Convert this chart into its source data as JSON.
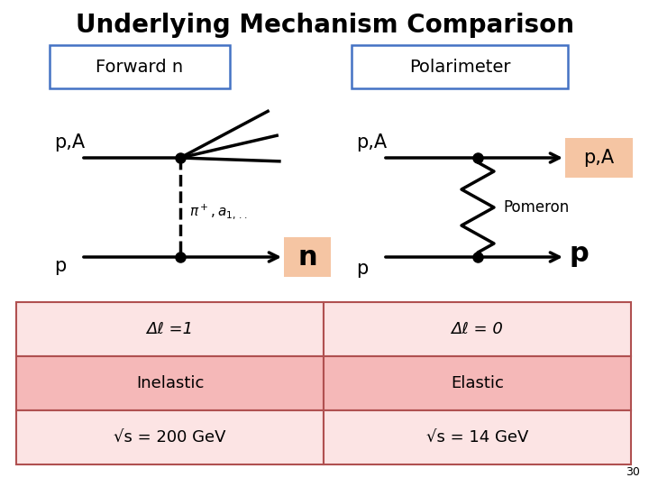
{
  "title": "Underlying Mechanism Comparison",
  "title_fontsize": 20,
  "background_color": "#ffffff",
  "left_label": "Forward n",
  "right_label": "Polarimeter",
  "label_box_edge": "#4472c4",
  "highlight_color": "#f5c5a3",
  "table_bg_light": "#fce4e4",
  "table_bg_mid": "#f5b8b8",
  "table_border": "#b05050",
  "row1": [
    "Δℓ =1",
    "Δℓ = 0"
  ],
  "row2": [
    "Inelastic",
    "Elastic"
  ],
  "row3": [
    "√s = 200 GeV",
    "√s = 14 GeV"
  ],
  "page_number": "30"
}
